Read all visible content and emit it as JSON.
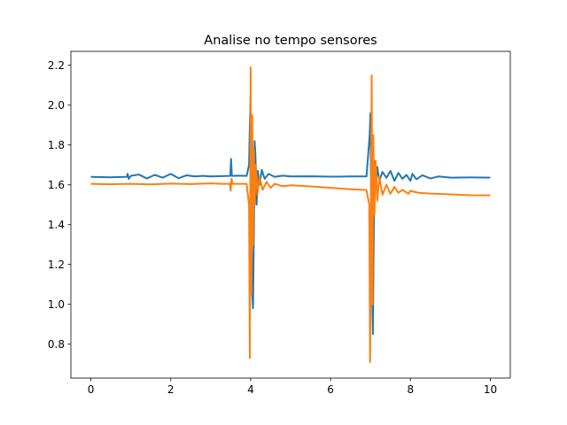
{
  "chart_data": {
    "type": "line",
    "title": "Analise no tempo sensores",
    "xlabel": "",
    "ylabel": "",
    "xlim": [
      -0.5,
      10.5
    ],
    "ylim": [
      0.63,
      2.27
    ],
    "xticks": [
      0,
      2,
      4,
      6,
      8,
      10
    ],
    "xtick_labels": [
      "0",
      "2",
      "4",
      "6",
      "8",
      "10"
    ],
    "yticks": [
      0.8,
      1.0,
      1.2,
      1.4,
      1.6,
      1.8,
      2.0,
      2.2
    ],
    "ytick_labels": [
      "0.8",
      "1.0",
      "1.2",
      "1.4",
      "1.6",
      "1.8",
      "2.0",
      "2.2"
    ],
    "grid": false,
    "legend": false,
    "series": [
      {
        "color": "#1f77b4",
        "points": [
          [
            0.0,
            1.64
          ],
          [
            0.5,
            1.638
          ],
          [
            0.9,
            1.64
          ],
          [
            0.92,
            1.655
          ],
          [
            0.95,
            1.63
          ],
          [
            1.0,
            1.645
          ],
          [
            1.2,
            1.652
          ],
          [
            1.4,
            1.632
          ],
          [
            1.6,
            1.65
          ],
          [
            1.8,
            1.636
          ],
          [
            2.0,
            1.655
          ],
          [
            2.2,
            1.633
          ],
          [
            2.4,
            1.648
          ],
          [
            2.6,
            1.642
          ],
          [
            2.8,
            1.645
          ],
          [
            3.0,
            1.642
          ],
          [
            3.3,
            1.644
          ],
          [
            3.49,
            1.645
          ],
          [
            3.51,
            1.73
          ],
          [
            3.53,
            1.645
          ],
          [
            3.7,
            1.646
          ],
          [
            3.9,
            1.645
          ],
          [
            3.96,
            1.7
          ],
          [
            3.98,
            1.9
          ],
          [
            4.0,
            2.04
          ],
          [
            4.02,
            1.4
          ],
          [
            4.04,
            1.05
          ],
          [
            4.06,
            0.98
          ],
          [
            4.08,
            1.35
          ],
          [
            4.1,
            1.82
          ],
          [
            4.12,
            1.75
          ],
          [
            4.15,
            1.5
          ],
          [
            4.18,
            1.67
          ],
          [
            4.22,
            1.6
          ],
          [
            4.28,
            1.675
          ],
          [
            4.35,
            1.63
          ],
          [
            4.45,
            1.655
          ],
          [
            4.6,
            1.64
          ],
          [
            4.8,
            1.646
          ],
          [
            5.0,
            1.642
          ],
          [
            5.5,
            1.643
          ],
          [
            6.0,
            1.641
          ],
          [
            6.5,
            1.642
          ],
          [
            6.9,
            1.642
          ],
          [
            6.98,
            1.85
          ],
          [
            7.0,
            1.96
          ],
          [
            7.02,
            1.4
          ],
          [
            7.04,
            1.12
          ],
          [
            7.06,
            0.85
          ],
          [
            7.08,
            1.3
          ],
          [
            7.1,
            1.72
          ],
          [
            7.13,
            1.58
          ],
          [
            7.17,
            1.69
          ],
          [
            7.22,
            1.62
          ],
          [
            7.3,
            1.665
          ],
          [
            7.4,
            1.635
          ],
          [
            7.5,
            1.67
          ],
          [
            7.6,
            1.62
          ],
          [
            7.7,
            1.66
          ],
          [
            7.8,
            1.63
          ],
          [
            7.9,
            1.65
          ],
          [
            8.0,
            1.62
          ],
          [
            8.05,
            1.655
          ],
          [
            8.15,
            1.628
          ],
          [
            8.3,
            1.648
          ],
          [
            8.5,
            1.632
          ],
          [
            8.7,
            1.642
          ],
          [
            9.0,
            1.636
          ],
          [
            9.5,
            1.637
          ],
          [
            10.0,
            1.636
          ]
        ]
      },
      {
        "color": "#ff7f0e",
        "points": [
          [
            0.0,
            1.605
          ],
          [
            0.5,
            1.603
          ],
          [
            1.0,
            1.605
          ],
          [
            1.5,
            1.602
          ],
          [
            2.0,
            1.606
          ],
          [
            2.5,
            1.604
          ],
          [
            3.0,
            1.607
          ],
          [
            3.3,
            1.605
          ],
          [
            3.48,
            1.605
          ],
          [
            3.5,
            1.57
          ],
          [
            3.52,
            1.63
          ],
          [
            3.55,
            1.605
          ],
          [
            3.7,
            1.605
          ],
          [
            3.9,
            1.605
          ],
          [
            3.96,
            1.5
          ],
          [
            3.98,
            0.73
          ],
          [
            4.0,
            2.19
          ],
          [
            4.02,
            1.05
          ],
          [
            4.04,
            1.95
          ],
          [
            4.06,
            1.3
          ],
          [
            4.08,
            1.78
          ],
          [
            4.1,
            1.5
          ],
          [
            4.13,
            1.7
          ],
          [
            4.17,
            1.55
          ],
          [
            4.22,
            1.64
          ],
          [
            4.3,
            1.575
          ],
          [
            4.4,
            1.615
          ],
          [
            4.5,
            1.585
          ],
          [
            4.6,
            1.605
          ],
          [
            4.8,
            1.593
          ],
          [
            5.0,
            1.598
          ],
          [
            5.5,
            1.592
          ],
          [
            6.0,
            1.585
          ],
          [
            6.5,
            1.578
          ],
          [
            6.9,
            1.574
          ],
          [
            6.97,
            1.5
          ],
          [
            6.99,
            0.71
          ],
          [
            7.01,
            1.25
          ],
          [
            7.03,
            2.15
          ],
          [
            7.05,
            1.0
          ],
          [
            7.07,
            1.85
          ],
          [
            7.1,
            1.45
          ],
          [
            7.13,
            1.72
          ],
          [
            7.17,
            1.52
          ],
          [
            7.22,
            1.64
          ],
          [
            7.3,
            1.55
          ],
          [
            7.4,
            1.6
          ],
          [
            7.5,
            1.555
          ],
          [
            7.6,
            1.59
          ],
          [
            7.7,
            1.56
          ],
          [
            7.8,
            1.575
          ],
          [
            7.95,
            1.555
          ],
          [
            8.0,
            1.57
          ],
          [
            8.2,
            1.56
          ],
          [
            8.5,
            1.556
          ],
          [
            9.0,
            1.552
          ],
          [
            9.5,
            1.548
          ],
          [
            10.0,
            1.547
          ]
        ]
      }
    ]
  }
}
